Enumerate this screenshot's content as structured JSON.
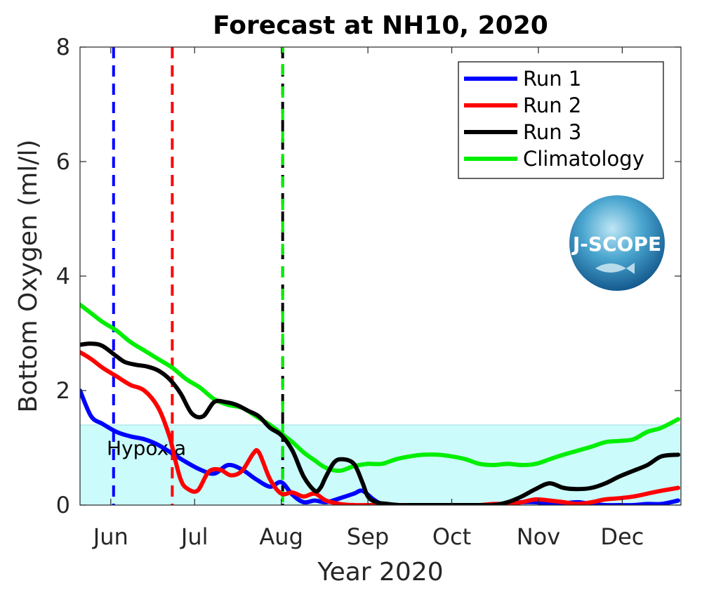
{
  "chart_data": {
    "type": "line",
    "title": "Forecast at NH10, 2020",
    "xlabel": "Year 2020",
    "ylabel": "Bottom Oxygen (ml/l)",
    "xlim": [
      142,
      357
    ],
    "ylim": [
      0,
      8
    ],
    "yticks": [
      0,
      2,
      4,
      6,
      8
    ],
    "xticks": [
      {
        "day": 153,
        "label": "Jun"
      },
      {
        "day": 183,
        "label": "Jul"
      },
      {
        "day": 214,
        "label": "Aug"
      },
      {
        "day": 245,
        "label": "Sep"
      },
      {
        "day": 275,
        "label": "Oct"
      },
      {
        "day": 306,
        "label": "Nov"
      },
      {
        "day": 336,
        "label": "Dec"
      }
    ],
    "hypoxia": {
      "threshold": 1.4,
      "label": "Hypoxia",
      "color": "#ccfbfb"
    },
    "run_starts": [
      {
        "name": "Run 1",
        "day": 154,
        "color": "#0000ff"
      },
      {
        "name": "Run 2",
        "day": 175,
        "color": "#ff0000"
      },
      {
        "name": "Run 3",
        "day": 214.5,
        "color": "#000000"
      },
      {
        "name": "Climatology",
        "day": 214.5,
        "color": "#00ee00"
      }
    ],
    "legend_position": "top-right",
    "series": [
      {
        "name": "Run 1",
        "color": "#0000ff",
        "x": [
          142,
          146,
          150,
          155,
          160,
          165,
          170,
          175,
          180,
          185,
          190,
          195,
          200,
          205,
          210,
          214,
          218,
          222,
          226,
          230,
          235,
          240,
          243,
          247,
          250,
          255,
          260,
          265,
          270,
          275,
          280,
          285,
          290,
          295,
          300,
          305,
          310,
          315,
          320,
          325,
          330,
          335,
          340,
          345,
          350,
          356
        ],
        "values": [
          2.0,
          1.55,
          1.42,
          1.28,
          1.2,
          1.15,
          1.05,
          0.9,
          0.75,
          0.62,
          0.55,
          0.7,
          0.62,
          0.45,
          0.32,
          0.4,
          0.18,
          0.05,
          0.08,
          0.05,
          0.12,
          0.2,
          0.25,
          0.1,
          0.02,
          0.0,
          0.0,
          0.0,
          0.0,
          0.0,
          0.0,
          0.0,
          0.0,
          0.02,
          0.05,
          0.05,
          0.02,
          0.03,
          0.05,
          0.02,
          0.0,
          0.0,
          0.0,
          0.02,
          0.02,
          0.08
        ]
      },
      {
        "name": "Run 2",
        "color": "#ff0000",
        "x": [
          142,
          146,
          150,
          155,
          160,
          165,
          170,
          174,
          176,
          178,
          180,
          184,
          188,
          192,
          196,
          200,
          204,
          206,
          210,
          214,
          218,
          222,
          226,
          230,
          235,
          240,
          245,
          250,
          255,
          260,
          265,
          270,
          275,
          280,
          285,
          290,
          295,
          300,
          305,
          310,
          315,
          320,
          325,
          330,
          335,
          340,
          345,
          350,
          356
        ],
        "values": [
          2.67,
          2.55,
          2.4,
          2.25,
          2.1,
          2.0,
          1.7,
          1.2,
          0.8,
          0.45,
          0.3,
          0.25,
          0.58,
          0.62,
          0.52,
          0.6,
          0.9,
          0.92,
          0.45,
          0.2,
          0.22,
          0.15,
          0.2,
          0.08,
          0.02,
          0.0,
          0.0,
          0.0,
          0.0,
          0.0,
          0.0,
          0.0,
          0.0,
          0.0,
          0.0,
          0.02,
          0.02,
          0.05,
          0.1,
          0.08,
          0.05,
          0.02,
          0.05,
          0.1,
          0.12,
          0.15,
          0.2,
          0.25,
          0.3
        ]
      },
      {
        "name": "Run 3",
        "color": "#000000",
        "x": [
          142,
          146,
          150,
          155,
          158,
          162,
          166,
          170,
          174,
          178,
          182,
          186,
          190,
          194,
          198,
          202,
          206,
          210,
          214,
          218,
          222,
          226,
          228,
          230,
          233,
          236,
          240,
          243,
          245,
          248,
          252,
          256,
          260,
          265,
          270,
          275,
          280,
          285,
          290,
          295,
          300,
          305,
          310,
          315,
          320,
          325,
          330,
          335,
          340,
          345,
          350,
          356
        ],
        "values": [
          2.8,
          2.82,
          2.78,
          2.6,
          2.5,
          2.45,
          2.42,
          2.35,
          2.2,
          1.95,
          1.6,
          1.55,
          1.8,
          1.8,
          1.75,
          1.65,
          1.55,
          1.35,
          1.22,
          0.95,
          0.5,
          0.25,
          0.3,
          0.5,
          0.75,
          0.8,
          0.72,
          0.4,
          0.15,
          0.05,
          0.02,
          0.0,
          0.0,
          0.0,
          0.0,
          0.0,
          0.0,
          0.0,
          0.0,
          0.05,
          0.15,
          0.28,
          0.38,
          0.3,
          0.28,
          0.3,
          0.38,
          0.5,
          0.6,
          0.7,
          0.85,
          0.88
        ]
      },
      {
        "name": "Climatology",
        "color": "#00ee00",
        "x": [
          142,
          146,
          150,
          155,
          160,
          165,
          170,
          175,
          180,
          185,
          190,
          195,
          200,
          205,
          210,
          214,
          218,
          222,
          226,
          230,
          235,
          240,
          245,
          250,
          255,
          260,
          265,
          270,
          275,
          280,
          285,
          290,
          295,
          300,
          305,
          310,
          315,
          320,
          325,
          330,
          335,
          340,
          345,
          350,
          356
        ],
        "values": [
          3.5,
          3.35,
          3.2,
          3.05,
          2.85,
          2.7,
          2.55,
          2.4,
          2.2,
          2.05,
          1.85,
          1.75,
          1.7,
          1.55,
          1.4,
          1.25,
          1.1,
          0.92,
          0.78,
          0.65,
          0.6,
          0.68,
          0.72,
          0.72,
          0.8,
          0.85,
          0.88,
          0.88,
          0.85,
          0.8,
          0.72,
          0.7,
          0.72,
          0.7,
          0.72,
          0.8,
          0.88,
          0.95,
          1.02,
          1.1,
          1.12,
          1.15,
          1.28,
          1.35,
          1.5
        ]
      }
    ]
  },
  "logo": {
    "text": "J-SCOPE"
  }
}
